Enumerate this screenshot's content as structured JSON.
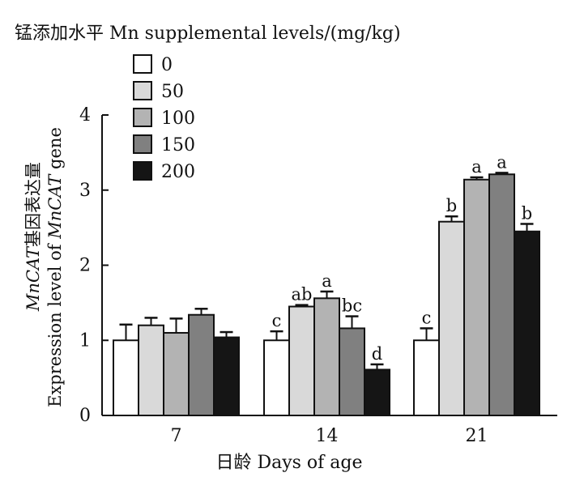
{
  "chart_data": {
    "type": "bar",
    "legend_title": "锰添加水平 Mn supplemental levels/(mg/kg)",
    "legend_placement": "top-left",
    "ylabel_line1_italic": "MnCAT",
    "ylabel_line1_rest": "基因表达量",
    "ylabel_line2_prefix": "Expression level of ",
    "ylabel_line2_italic": "MnCAT",
    "ylabel_line2_suffix": " gene",
    "xlabel": "日龄  Days of age",
    "ylim": [
      0,
      4
    ],
    "yticks": [
      "0",
      "1",
      "2",
      "3",
      "4"
    ],
    "categories": [
      "7",
      "14",
      "21"
    ],
    "grid": false,
    "series": [
      {
        "name": "0",
        "color": "#ffffff",
        "values": [
          1.0,
          1.0,
          1.0
        ],
        "errors": [
          0.21,
          0.12,
          0.16
        ],
        "letters": [
          "",
          "c",
          "c"
        ]
      },
      {
        "name": "50",
        "color": "#d9d9d9",
        "values": [
          1.2,
          1.45,
          2.58
        ],
        "errors": [
          0.1,
          0.02,
          0.07
        ],
        "letters": [
          "",
          "ab",
          "b"
        ]
      },
      {
        "name": "100",
        "color": "#b3b3b3",
        "values": [
          1.1,
          1.56,
          3.14
        ],
        "errors": [
          0.19,
          0.09,
          0.03
        ],
        "letters": [
          "",
          "a",
          "a"
        ]
      },
      {
        "name": "150",
        "color": "#808080",
        "values": [
          1.34,
          1.16,
          3.21
        ],
        "errors": [
          0.08,
          0.16,
          0.02
        ],
        "letters": [
          "",
          "bc",
          "a"
        ]
      },
      {
        "name": "200",
        "color": "#151515",
        "values": [
          1.04,
          0.61,
          2.45
        ],
        "errors": [
          0.07,
          0.07,
          0.1
        ],
        "letters": [
          "",
          "d",
          "b"
        ]
      }
    ]
  }
}
